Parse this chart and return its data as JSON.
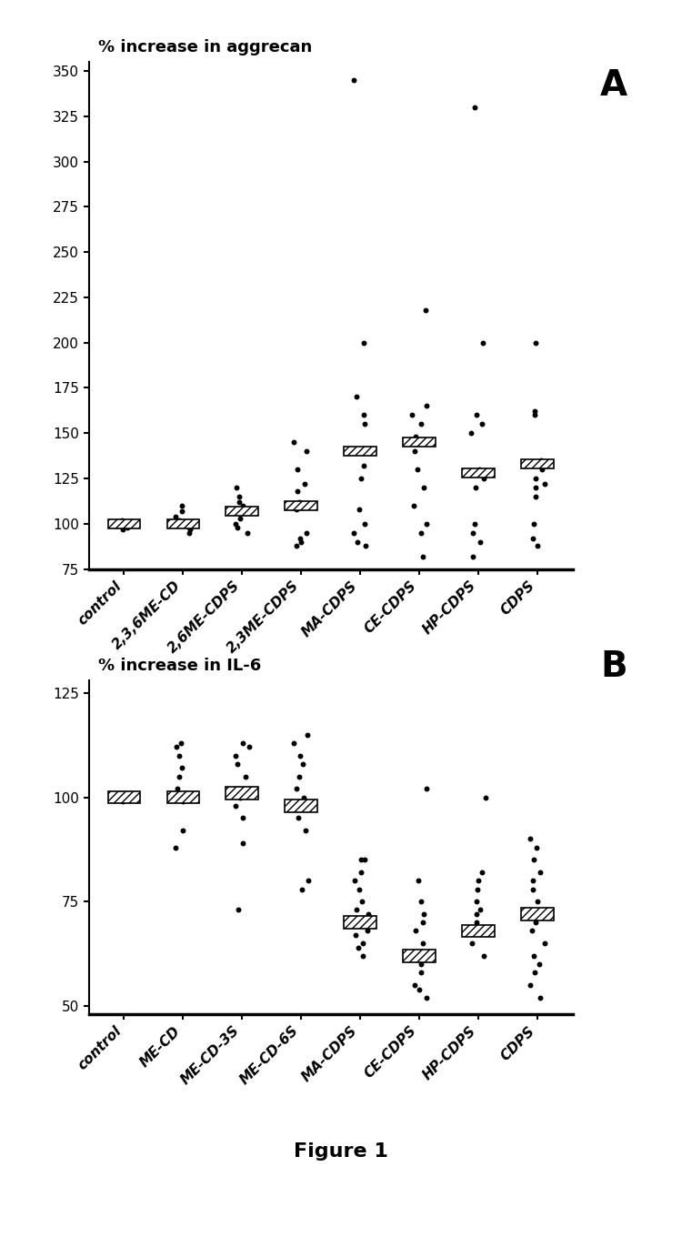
{
  "panel_A": {
    "title": "% increase in aggrecan",
    "ylim": [
      75,
      355
    ],
    "yticks": [
      75,
      100,
      125,
      150,
      175,
      200,
      225,
      250,
      275,
      300,
      325,
      350
    ],
    "categories": [
      "control",
      "2,3,6ME-CD",
      "2,6ME-CDPS",
      "2,3ME-CDPS",
      "MA-CDPS",
      "CE-CDPS",
      "HP-CDPS",
      "CDPS"
    ],
    "means": [
      100,
      100,
      107,
      110,
      140,
      145,
      128,
      133
    ],
    "data_points": [
      [
        97,
        98,
        99,
        100,
        100,
        100,
        101,
        102,
        100,
        99
      ],
      [
        95,
        97,
        98,
        100,
        102,
        104,
        107,
        110,
        100,
        100
      ],
      [
        95,
        98,
        100,
        103,
        106,
        110,
        112,
        115,
        120
      ],
      [
        88,
        90,
        92,
        95,
        108,
        112,
        118,
        122,
        130,
        140,
        145
      ],
      [
        88,
        90,
        95,
        100,
        108,
        125,
        132,
        140,
        155,
        160,
        170,
        200,
        345
      ],
      [
        82,
        95,
        100,
        110,
        120,
        130,
        140,
        148,
        155,
        160,
        165,
        218
      ],
      [
        82,
        90,
        95,
        100,
        120,
        125,
        128,
        130,
        150,
        155,
        160,
        200,
        330
      ],
      [
        88,
        92,
        100,
        115,
        120,
        122,
        125,
        130,
        135,
        160,
        162,
        200
      ]
    ]
  },
  "panel_B": {
    "title": "% increase in IL-6",
    "ylim": [
      48,
      128
    ],
    "yticks": [
      50,
      75,
      100,
      125
    ],
    "categories": [
      "control",
      "ME-CD",
      "ME-CD-3S",
      "ME-CD-6S",
      "MA-CDPS",
      "CE-CDPS",
      "HP-CDPS",
      "CDPS"
    ],
    "means": [
      100,
      100,
      101,
      98,
      70,
      62,
      68,
      72
    ],
    "data_points": [
      [
        99,
        100,
        100,
        100,
        100,
        100,
        100,
        100,
        100,
        101
      ],
      [
        88,
        92,
        99,
        100,
        102,
        105,
        107,
        110,
        112,
        113
      ],
      [
        73,
        89,
        95,
        98,
        100,
        102,
        105,
        108,
        110,
        112,
        113
      ],
      [
        78,
        80,
        92,
        95,
        98,
        100,
        102,
        105,
        108,
        110,
        113,
        115
      ],
      [
        62,
        64,
        65,
        67,
        68,
        70,
        72,
        73,
        75,
        78,
        80,
        82,
        85,
        85
      ],
      [
        52,
        54,
        55,
        58,
        60,
        62,
        63,
        65,
        68,
        70,
        72,
        75,
        80,
        102
      ],
      [
        62,
        65,
        68,
        70,
        72,
        73,
        75,
        78,
        80,
        82,
        100
      ],
      [
        52,
        55,
        58,
        60,
        62,
        65,
        68,
        70,
        72,
        75,
        78,
        80,
        82,
        85,
        88,
        90
      ]
    ]
  },
  "figure_label": "Figure 1"
}
